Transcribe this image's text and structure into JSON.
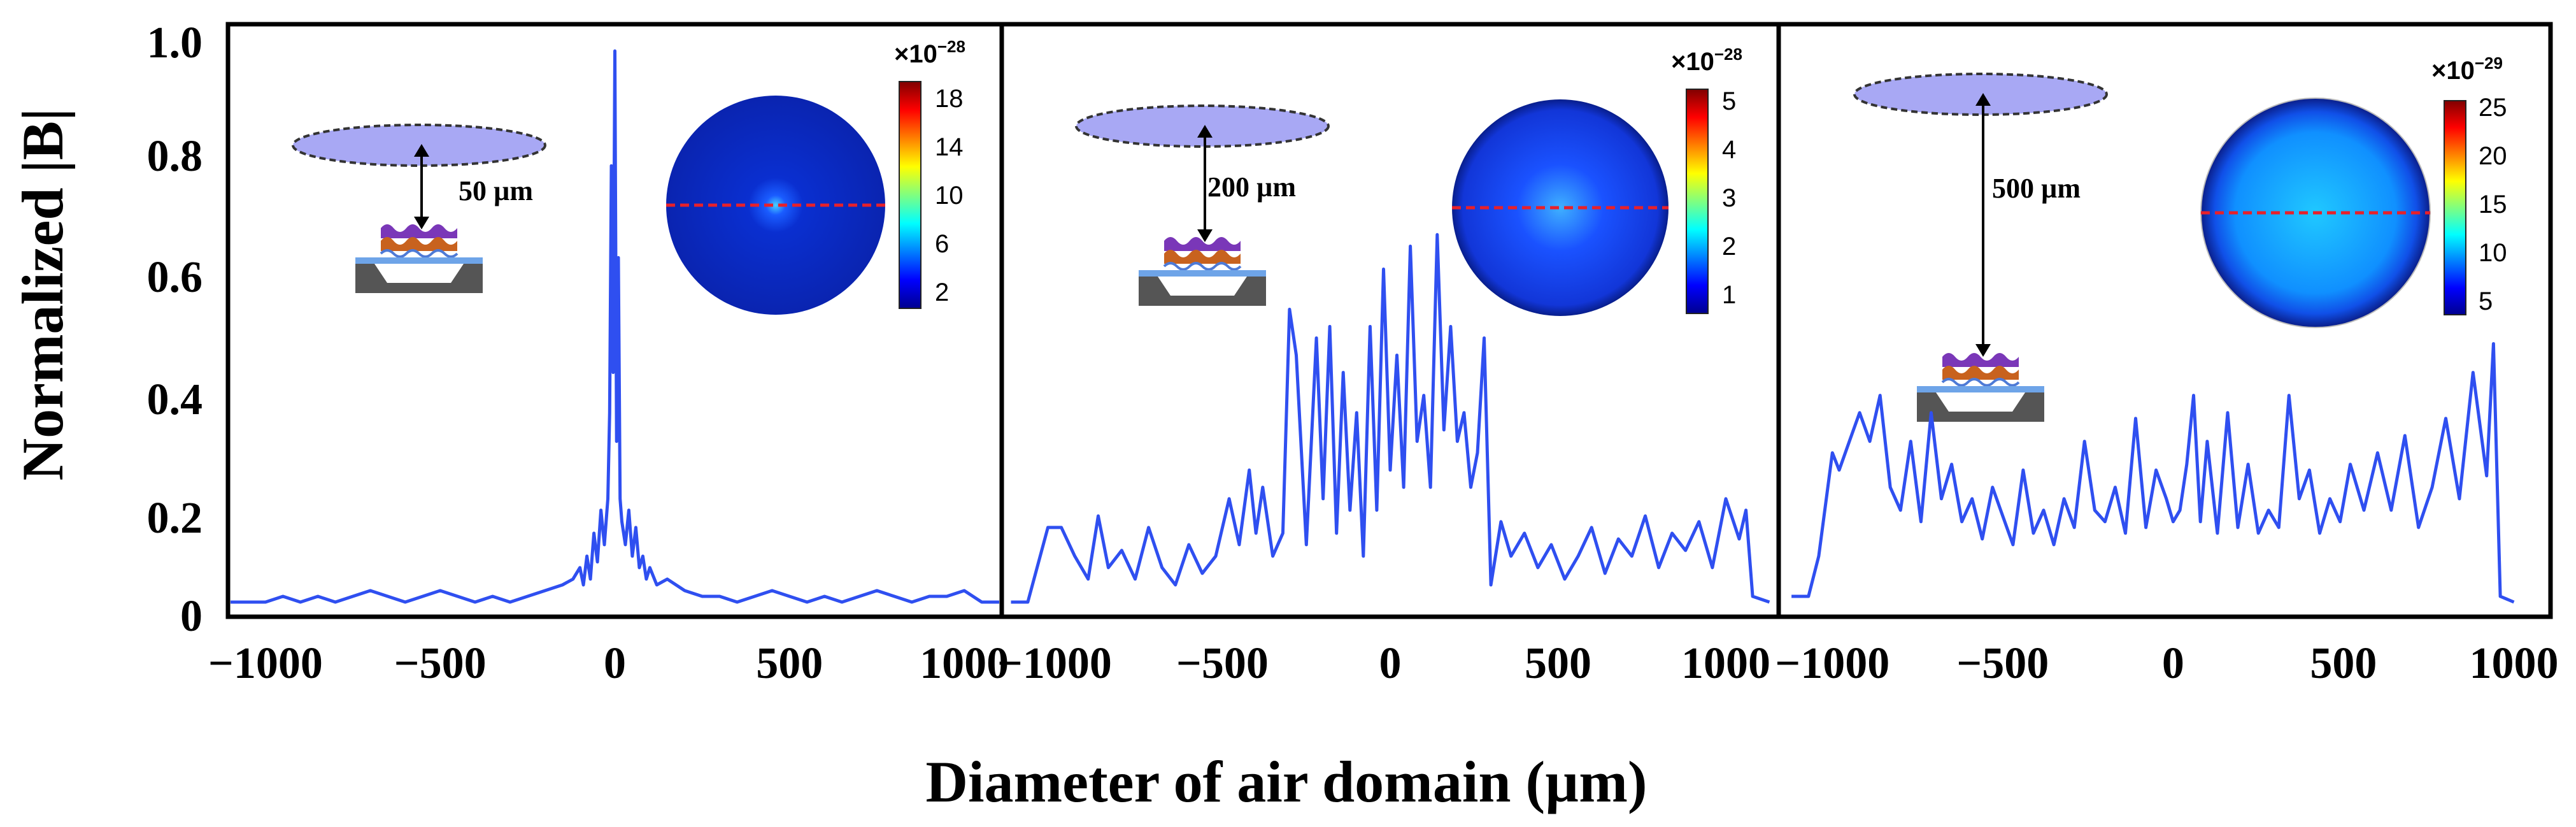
{
  "figure": {
    "ylabel": "Normalized |B|",
    "xlabel": "Diameter of air domain (µm)",
    "y_ticks": [
      "0",
      "0.2",
      "0.4",
      "0.6",
      "0.8",
      "1.0"
    ],
    "line_color": "#2f4ff0",
    "dashed_line_color": "#e8202a",
    "ellipse_color": "#a8a8f4"
  },
  "chart_data": [
    {
      "type": "line",
      "title": "",
      "distance_label": "50 µm",
      "colorbar": {
        "scale_base": "×10",
        "scale_exp": "−28",
        "ticks": [
          "18",
          "14",
          "10",
          "6",
          "2"
        ]
      },
      "x_ticks": [
        "−1000",
        "−500",
        "0",
        "500",
        "1000"
      ],
      "xlim": [
        -1100,
        1100
      ],
      "ylim": [
        0,
        1.0
      ],
      "x": [
        -1100,
        -1050,
        -1000,
        -950,
        -900,
        -850,
        -800,
        -750,
        -700,
        -650,
        -600,
        -550,
        -500,
        -450,
        -400,
        -350,
        -300,
        -250,
        -200,
        -150,
        -120,
        -100,
        -90,
        -80,
        -70,
        -60,
        -50,
        -40,
        -30,
        -20,
        -15,
        -10,
        -5,
        0,
        5,
        10,
        15,
        20,
        30,
        40,
        50,
        60,
        70,
        80,
        90,
        100,
        120,
        150,
        200,
        250,
        300,
        350,
        400,
        450,
        500,
        550,
        600,
        650,
        700,
        750,
        800,
        850,
        900,
        950,
        1000,
        1050,
        1100
      ],
      "y": [
        0.02,
        0.02,
        0.02,
        0.03,
        0.02,
        0.03,
        0.02,
        0.03,
        0.04,
        0.03,
        0.02,
        0.03,
        0.04,
        0.03,
        0.02,
        0.03,
        0.02,
        0.03,
        0.04,
        0.05,
        0.06,
        0.08,
        0.05,
        0.1,
        0.06,
        0.14,
        0.09,
        0.18,
        0.12,
        0.2,
        0.35,
        0.78,
        0.42,
        0.98,
        0.3,
        0.62,
        0.2,
        0.16,
        0.12,
        0.18,
        0.1,
        0.15,
        0.08,
        0.1,
        0.06,
        0.08,
        0.05,
        0.06,
        0.04,
        0.03,
        0.03,
        0.02,
        0.03,
        0.04,
        0.03,
        0.02,
        0.03,
        0.02,
        0.03,
        0.04,
        0.03,
        0.02,
        0.03,
        0.03,
        0.04,
        0.02,
        0.02
      ]
    },
    {
      "type": "line",
      "title": "",
      "distance_label": "200 µm",
      "colorbar": {
        "scale_base": "×10",
        "scale_exp": "−28",
        "ticks": [
          "5",
          "4",
          "3",
          "2",
          "1"
        ]
      },
      "x_ticks": [
        "−1000",
        "−500",
        "0",
        "500",
        "1000"
      ],
      "xlim": [
        -1150,
        1150
      ],
      "ylim": [
        0,
        1.0
      ],
      "x": [
        -1130,
        -1080,
        -1020,
        -980,
        -940,
        -900,
        -870,
        -840,
        -800,
        -760,
        -720,
        -680,
        -640,
        -600,
        -560,
        -520,
        -480,
        -450,
        -420,
        -400,
        -380,
        -350,
        -320,
        -300,
        -280,
        -250,
        -220,
        -200,
        -180,
        -160,
        -140,
        -120,
        -100,
        -80,
        -60,
        -40,
        -20,
        0,
        20,
        40,
        60,
        80,
        100,
        120,
        140,
        160,
        180,
        200,
        220,
        240,
        260,
        280,
        300,
        330,
        360,
        400,
        440,
        480,
        520,
        560,
        600,
        640,
        680,
        720,
        760,
        800,
        840,
        880,
        920,
        960,
        1000,
        1040,
        1060,
        1080,
        1130
      ],
      "y": [
        0.02,
        0.02,
        0.15,
        0.15,
        0.1,
        0.06,
        0.17,
        0.08,
        0.11,
        0.06,
        0.15,
        0.08,
        0.05,
        0.12,
        0.07,
        0.1,
        0.2,
        0.12,
        0.25,
        0.14,
        0.22,
        0.1,
        0.14,
        0.53,
        0.45,
        0.12,
        0.48,
        0.2,
        0.5,
        0.14,
        0.42,
        0.18,
        0.35,
        0.1,
        0.5,
        0.18,
        0.6,
        0.25,
        0.45,
        0.22,
        0.64,
        0.3,
        0.38,
        0.22,
        0.66,
        0.32,
        0.5,
        0.3,
        0.35,
        0.22,
        0.28,
        0.48,
        0.05,
        0.16,
        0.1,
        0.14,
        0.08,
        0.12,
        0.06,
        0.1,
        0.15,
        0.07,
        0.13,
        0.1,
        0.17,
        0.08,
        0.14,
        0.11,
        0.16,
        0.08,
        0.2,
        0.13,
        0.18,
        0.03,
        0.02
      ]
    },
    {
      "type": "line",
      "title": "",
      "distance_label": "500 µm",
      "colorbar": {
        "scale_base": "×10",
        "scale_exp": "−29",
        "ticks": [
          "25",
          "20",
          "15",
          "10",
          "5"
        ]
      },
      "x_ticks": [
        "−1000",
        "−500",
        "0",
        "500",
        "1000"
      ],
      "xlim": [
        -1150,
        1100
      ],
      "ylim": [
        0,
        1.0
      ],
      "x": [
        -1120,
        -1070,
        -1040,
        -1000,
        -980,
        -950,
        -920,
        -890,
        -860,
        -830,
        -800,
        -770,
        -740,
        -710,
        -680,
        -650,
        -620,
        -590,
        -560,
        -530,
        -500,
        -470,
        -440,
        -410,
        -380,
        -350,
        -320,
        -290,
        -260,
        -230,
        -200,
        -170,
        -140,
        -110,
        -80,
        -50,
        -20,
        0,
        20,
        40,
        60,
        80,
        100,
        130,
        160,
        190,
        220,
        250,
        280,
        310,
        340,
        370,
        400,
        430,
        460,
        490,
        520,
        560,
        600,
        640,
        680,
        720,
        760,
        800,
        840,
        880,
        920,
        940,
        960,
        1000
      ],
      "y": [
        0.03,
        0.03,
        0.1,
        0.28,
        0.25,
        0.3,
        0.35,
        0.3,
        0.38,
        0.22,
        0.18,
        0.3,
        0.16,
        0.35,
        0.2,
        0.26,
        0.16,
        0.2,
        0.13,
        0.22,
        0.17,
        0.12,
        0.25,
        0.14,
        0.18,
        0.12,
        0.2,
        0.15,
        0.3,
        0.18,
        0.16,
        0.22,
        0.14,
        0.34,
        0.15,
        0.25,
        0.2,
        0.16,
        0.18,
        0.26,
        0.38,
        0.16,
        0.3,
        0.14,
        0.35,
        0.15,
        0.26,
        0.14,
        0.18,
        0.15,
        0.38,
        0.2,
        0.25,
        0.14,
        0.2,
        0.16,
        0.26,
        0.18,
        0.28,
        0.18,
        0.31,
        0.15,
        0.22,
        0.34,
        0.2,
        0.42,
        0.24,
        0.47,
        0.03,
        0.02
      ]
    }
  ]
}
